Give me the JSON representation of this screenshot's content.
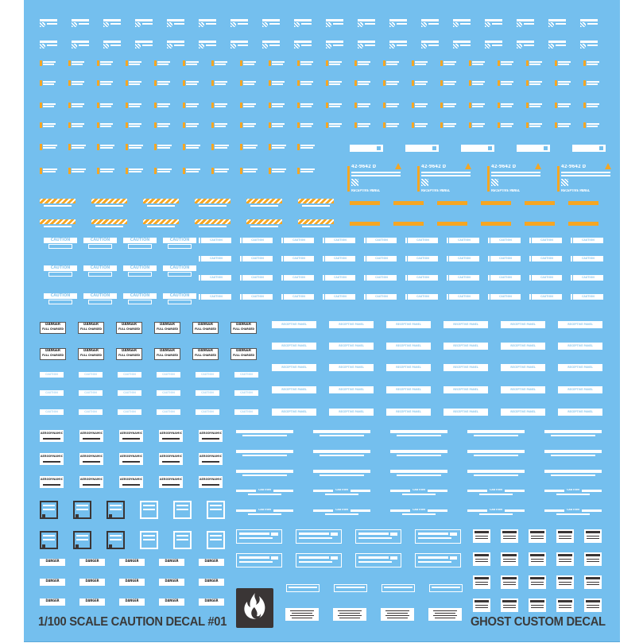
{
  "sheet": {
    "title_left": "1/100 SCALE CAUTION DECAL #01",
    "title_right": "GHOST CUSTOM DECAL",
    "logo_icon": "flame-logo-icon"
  },
  "labels": {
    "caution": "CAUTION",
    "danger": "DANGER",
    "full_charged": "FULL CHARGED",
    "aerodynamic": "AERODYNAMIC",
    "receptive_panel": "RECEPTIVE PANEL",
    "panel_code": "42-9642 D"
  },
  "colors": {
    "sheet_background": "#74bfee",
    "decal_white": "#ffffff",
    "accent_orange": "#f5a623",
    "dark": "#3a3535",
    "title_text": "#3a3a3a"
  }
}
